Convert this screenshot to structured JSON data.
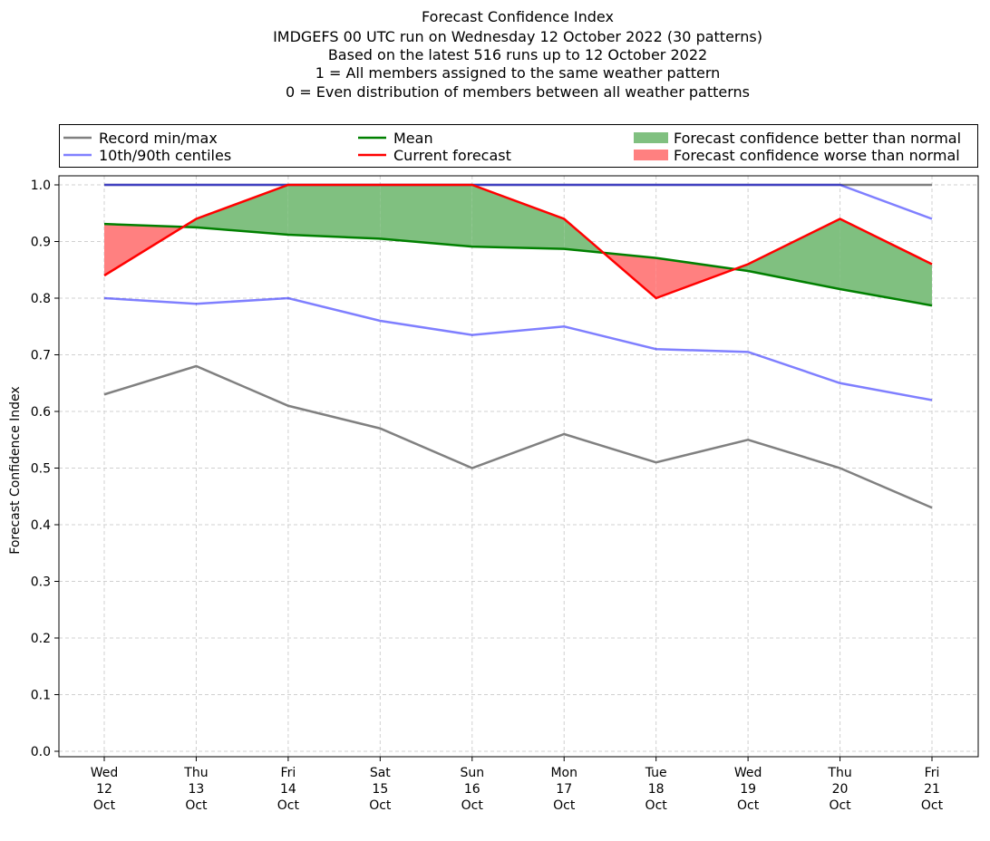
{
  "chart_data": {
    "type": "line",
    "title_lines": [
      "Forecast Confidence Index",
      "IMDGEFS 00 UTC run on Wednesday 12 October 2022 (30 patterns)",
      "Based on the latest 516 runs up to 12 October 2022",
      "1 = All members assigned to the same weather pattern",
      "0 = Even distribution of members between all weather patterns"
    ],
    "ylabel": "Forecast Confidence Index",
    "xlabel": "",
    "ylim": [
      0,
      1.0
    ],
    "yticks": [
      "0.0",
      "0.1",
      "0.2",
      "0.3",
      "0.4",
      "0.5",
      "0.6",
      "0.7",
      "0.8",
      "0.9",
      "1.0"
    ],
    "categories": [
      [
        "Wed",
        "12",
        "Oct"
      ],
      [
        "Thu",
        "13",
        "Oct"
      ],
      [
        "Fri",
        "14",
        "Oct"
      ],
      [
        "Sat",
        "15",
        "Oct"
      ],
      [
        "Sun",
        "16",
        "Oct"
      ],
      [
        "Mon",
        "17",
        "Oct"
      ],
      [
        "Tue",
        "18",
        "Oct"
      ],
      [
        "Wed",
        "19",
        "Oct"
      ],
      [
        "Thu",
        "20",
        "Oct"
      ],
      [
        "Fri",
        "21",
        "Oct"
      ]
    ],
    "grid": true,
    "legend_position": "top",
    "series": {
      "record_min": [
        0.63,
        0.68,
        0.61,
        0.57,
        0.5,
        0.56,
        0.51,
        0.55,
        0.5,
        0.43
      ],
      "record_max": [
        1.0,
        1.0,
        1.0,
        1.0,
        1.0,
        1.0,
        1.0,
        1.0,
        1.0,
        1.0
      ],
      "p10": [
        0.8,
        0.79,
        0.8,
        0.76,
        0.735,
        0.75,
        0.71,
        0.705,
        0.65,
        0.62
      ],
      "p90": [
        1.0,
        1.0,
        1.0,
        1.0,
        1.0,
        1.0,
        1.0,
        1.0,
        1.0,
        0.94
      ],
      "mean": [
        0.931,
        0.925,
        0.912,
        0.905,
        0.891,
        0.887,
        0.871,
        0.848,
        0.816,
        0.787
      ],
      "current": [
        0.84,
        0.94,
        1.0,
        1.0,
        1.0,
        0.94,
        0.8,
        0.86,
        0.94,
        0.86
      ]
    },
    "legend": [
      {
        "label": "Record min/max",
        "color": "#808080",
        "kind": "line"
      },
      {
        "label": "10th/90th centiles",
        "color": "#8080ff",
        "kind": "line"
      },
      {
        "label": "Mean",
        "color": "#008000",
        "kind": "line"
      },
      {
        "label": "Current forecast",
        "color": "#ff0000",
        "kind": "line"
      },
      {
        "label": "Forecast confidence better than normal",
        "color": "#80c080",
        "kind": "patch"
      },
      {
        "label": "Forecast confidence worse than normal",
        "color": "#ff8080",
        "kind": "patch"
      }
    ]
  }
}
